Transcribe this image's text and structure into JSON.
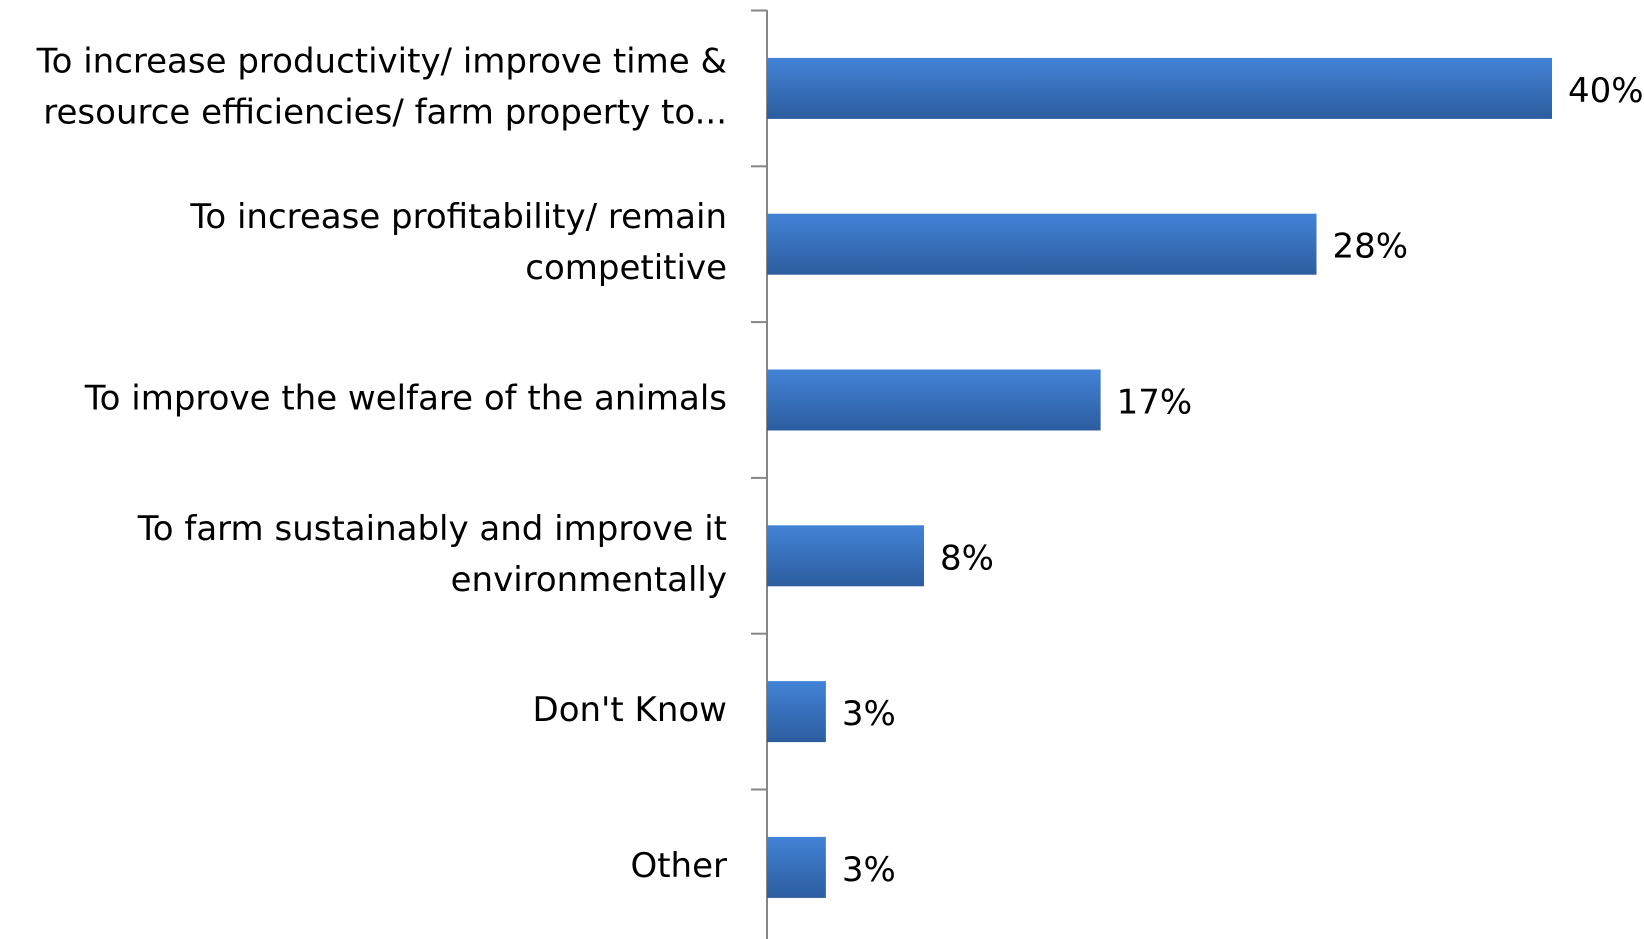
{
  "chart_data": {
    "type": "bar",
    "orientation": "horizontal",
    "categories": [
      [
        "To increase productivity/ improve time &",
        "resource efficiencies/ farm property to..."
      ],
      [
        "To increase profitability/ remain",
        "competitive"
      ],
      [
        "To improve the welfare of the animals"
      ],
      [
        "To farm sustainably and improve it",
        "environmentally"
      ],
      [
        "Don't Know"
      ],
      [
        "Other"
      ]
    ],
    "values": [
      40,
      28,
      17,
      8,
      3,
      3
    ],
    "value_labels": [
      "40%",
      "28%",
      "17%",
      "8%",
      "3%",
      "3%"
    ],
    "color": "#3a75c4"
  }
}
